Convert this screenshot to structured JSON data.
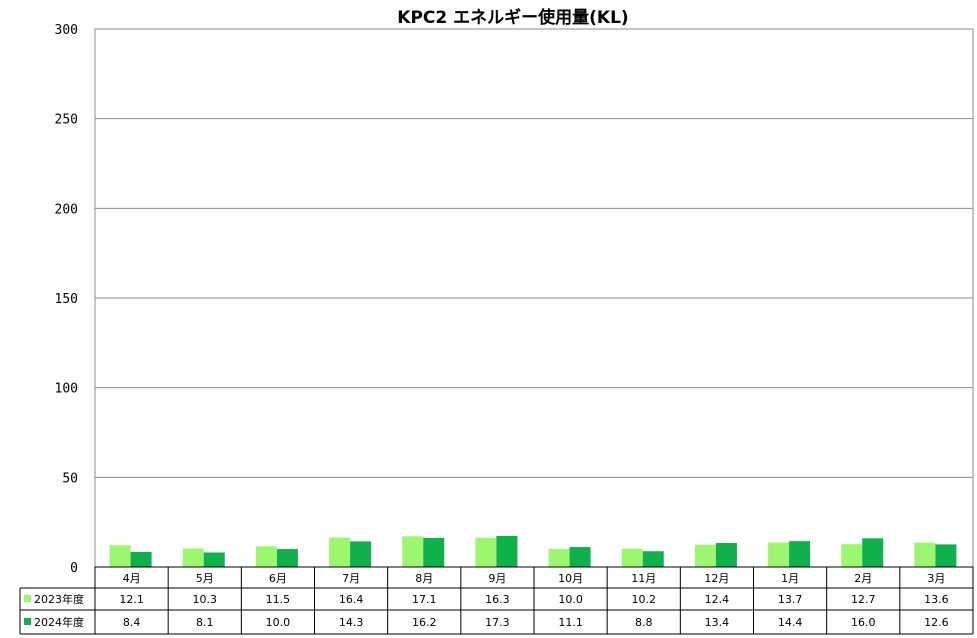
{
  "chart_data": {
    "type": "bar",
    "title": "KPC2 エネルギー使用量(KL)",
    "categories": [
      "4月",
      "5月",
      "6月",
      "7月",
      "8月",
      "9月",
      "10月",
      "11月",
      "12月",
      "1月",
      "2月",
      "3月"
    ],
    "series": [
      {
        "name": "2023年度",
        "color": "#9cf66e",
        "values": [
          12.1,
          10.3,
          11.5,
          16.4,
          17.1,
          16.3,
          10.0,
          10.2,
          12.4,
          13.7,
          12.7,
          13.6
        ],
        "labels": [
          "12.1",
          "10.3",
          "11.5",
          "16.4",
          "17.1",
          "16.3",
          "10.0",
          "10.2",
          "12.4",
          "13.7",
          "12.7",
          "13.6"
        ]
      },
      {
        "name": "2024年度",
        "color": "#10b04c",
        "values": [
          8.4,
          8.1,
          10.0,
          14.3,
          16.2,
          17.3,
          11.1,
          8.8,
          13.4,
          14.4,
          16.0,
          12.6
        ],
        "labels": [
          "8.4",
          "8.1",
          "10.0",
          "14.3",
          "16.2",
          "17.3",
          "11.1",
          "8.8",
          "13.4",
          "14.4",
          "16.0",
          "12.6"
        ]
      }
    ],
    "ylim": [
      0,
      300
    ],
    "yticks": [
      "0",
      "50",
      "100",
      "150",
      "200",
      "250",
      "300"
    ],
    "grid": true,
    "legend": "data-table-below"
  }
}
